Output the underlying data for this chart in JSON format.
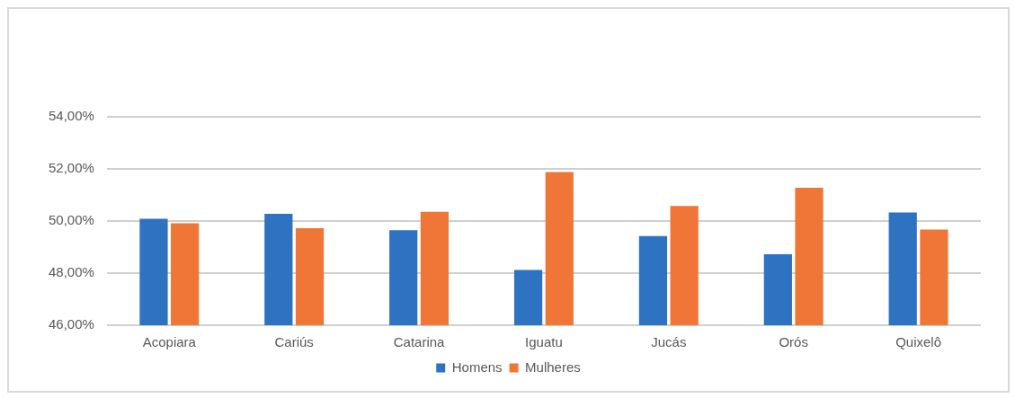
{
  "chart_data": {
    "type": "bar",
    "categories": [
      "Acopiara",
      "Cariús",
      "Catarina",
      "Iguatu",
      "Jucás",
      "Orós",
      "Quixelô"
    ],
    "series": [
      {
        "name": "Homens",
        "color": "#2e72c2",
        "values": [
          50.09,
          50.28,
          49.65,
          48.12,
          49.42,
          48.72,
          50.33
        ]
      },
      {
        "name": "Mulheres",
        "color": "#f07638",
        "values": [
          49.91,
          49.72,
          50.35,
          51.88,
          50.58,
          51.28,
          49.67
        ]
      }
    ],
    "ylim": [
      46,
      54
    ],
    "yticks": [
      {
        "value": 46,
        "label": "46,00%"
      },
      {
        "value": 48,
        "label": "48,00%"
      },
      {
        "value": 50,
        "label": "50,00%"
      },
      {
        "value": 52,
        "label": "52,00%"
      },
      {
        "value": 54,
        "label": "54,00%"
      }
    ],
    "grid": "y",
    "legend": "bottom"
  }
}
